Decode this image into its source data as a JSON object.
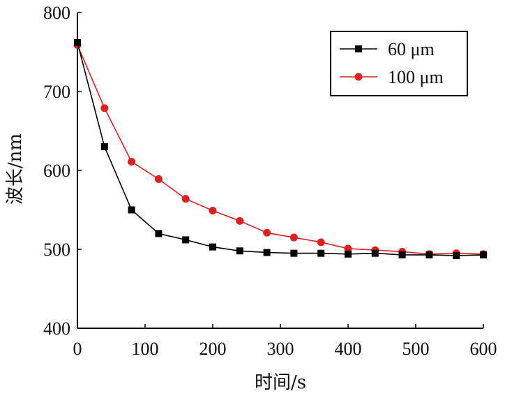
{
  "chart_data": {
    "type": "line",
    "xlabel": "时间/s",
    "ylabel": "波长/nm",
    "xlim": [
      0,
      600
    ],
    "ylim": [
      400,
      800
    ],
    "xticks": [
      0,
      100,
      200,
      300,
      400,
      500,
      600
    ],
    "yticks": [
      400,
      500,
      600,
      700,
      800
    ],
    "grid": false,
    "legend_position": "top-right",
    "series": [
      {
        "name": "60 μm",
        "color": "#000000",
        "marker": "square",
        "x": [
          0,
          40,
          80,
          120,
          160,
          200,
          240,
          280,
          320,
          360,
          400,
          440,
          480,
          520,
          560,
          600
        ],
        "y": [
          762,
          630,
          550,
          520,
          512,
          503,
          498,
          496,
          495,
          495,
          494,
          495,
          493,
          493,
          492,
          493
        ]
      },
      {
        "name": "100 μm",
        "color": "#e02020",
        "marker": "circle",
        "x": [
          0,
          40,
          80,
          120,
          160,
          200,
          240,
          280,
          320,
          360,
          400,
          440,
          480,
          520,
          560,
          600
        ],
        "y": [
          759,
          679,
          611,
          589,
          564,
          549,
          536,
          521,
          515,
          509,
          501,
          499,
          497,
          494,
          495,
          494
        ]
      }
    ]
  }
}
